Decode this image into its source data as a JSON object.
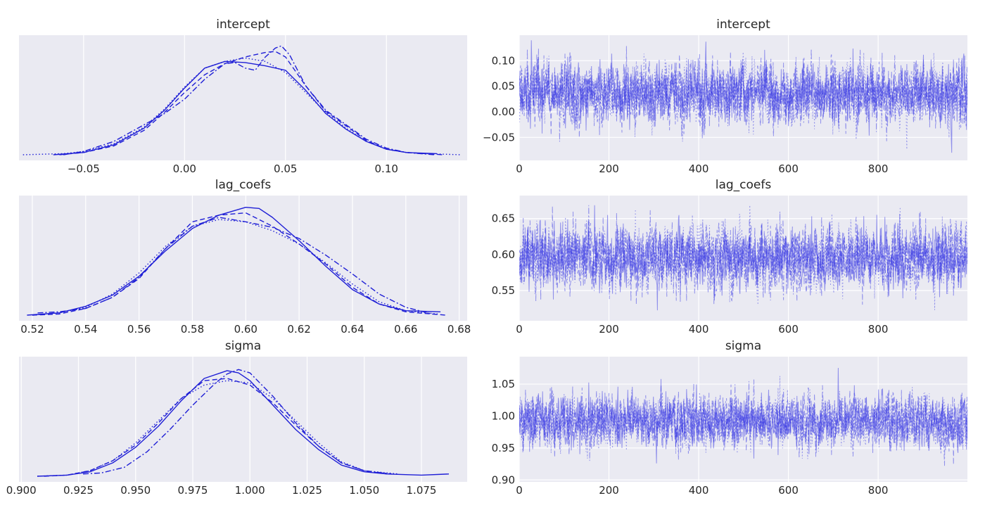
{
  "chart_data": [
    {
      "id": "kde-intercept",
      "type": "line",
      "title": "intercept",
      "xlim": [
        -0.082,
        0.14
      ],
      "ylim": [
        0,
        1
      ],
      "xticks": [
        -0.05,
        0.0,
        0.05,
        0.1
      ],
      "xtick_labels": [
        "−0.05",
        "0.00",
        "0.05",
        "0.10"
      ],
      "show_yticks": false,
      "grid": true,
      "color": "#1f1fd6",
      "series": [
        {
          "linestyle": "solid",
          "x": [
            -0.065,
            -0.05,
            -0.035,
            -0.02,
            -0.01,
            0.0,
            0.01,
            0.02,
            0.03,
            0.04,
            0.05,
            0.06,
            0.07,
            0.08,
            0.09,
            0.1,
            0.11,
            0.125
          ],
          "y": [
            0.0,
            0.02,
            0.09,
            0.24,
            0.4,
            0.6,
            0.78,
            0.84,
            0.83,
            0.8,
            0.76,
            0.58,
            0.37,
            0.23,
            0.12,
            0.05,
            0.02,
            0.01
          ]
        },
        {
          "linestyle": "dashed",
          "x": [
            -0.062,
            -0.05,
            -0.035,
            -0.02,
            -0.01,
            0.0,
            0.01,
            0.02,
            0.03,
            0.04,
            0.045,
            0.05,
            0.06,
            0.07,
            0.08,
            0.09,
            0.1,
            0.11,
            0.128
          ],
          "y": [
            0.0,
            0.02,
            0.08,
            0.22,
            0.38,
            0.56,
            0.72,
            0.82,
            0.88,
            0.92,
            0.93,
            0.88,
            0.62,
            0.39,
            0.26,
            0.13,
            0.05,
            0.02,
            0.0
          ]
        },
        {
          "linestyle": "dotted",
          "x": [
            -0.08,
            -0.06,
            -0.05,
            -0.035,
            -0.02,
            -0.01,
            0.0,
            0.01,
            0.02,
            0.03,
            0.04,
            0.05,
            0.06,
            0.07,
            0.08,
            0.09,
            0.1,
            0.11,
            0.12,
            0.137
          ],
          "y": [
            0.0,
            0.01,
            0.03,
            0.1,
            0.25,
            0.41,
            0.61,
            0.78,
            0.84,
            0.87,
            0.84,
            0.74,
            0.56,
            0.38,
            0.24,
            0.12,
            0.05,
            0.02,
            0.01,
            0.0
          ]
        },
        {
          "linestyle": "dashdot",
          "x": [
            -0.06,
            -0.05,
            -0.035,
            -0.02,
            -0.01,
            0.0,
            0.01,
            0.02,
            0.025,
            0.03,
            0.035,
            0.04,
            0.045,
            0.048,
            0.052,
            0.06,
            0.07,
            0.08,
            0.09,
            0.1,
            0.11,
            0.124
          ],
          "y": [
            0.0,
            0.03,
            0.12,
            0.27,
            0.37,
            0.5,
            0.68,
            0.82,
            0.83,
            0.78,
            0.76,
            0.88,
            0.96,
            0.98,
            0.9,
            0.62,
            0.4,
            0.27,
            0.14,
            0.06,
            0.02,
            0.0
          ]
        }
      ]
    },
    {
      "id": "trace-intercept",
      "type": "line",
      "title": "intercept",
      "xlim": [
        0,
        999
      ],
      "ylim": [
        -0.095,
        0.15
      ],
      "xticks": [
        0,
        200,
        400,
        600,
        800
      ],
      "xtick_labels": [
        "0",
        "200",
        "400",
        "600",
        "800"
      ],
      "yticks": [
        -0.05,
        0.0,
        0.05,
        0.1
      ],
      "ytick_labels": [
        "−0.05",
        "0.00",
        "0.05",
        "0.10"
      ],
      "grid": true,
      "color": "#3535e3",
      "n_draws": 1000,
      "n_chains": 4,
      "mean": 0.035,
      "sd": 0.03,
      "range": [
        -0.08,
        0.14
      ]
    },
    {
      "id": "kde-lag_coefs",
      "type": "line",
      "title": "lag_coefs",
      "xlim": [
        0.515,
        0.683
      ],
      "ylim": [
        0,
        1
      ],
      "xticks": [
        0.52,
        0.54,
        0.56,
        0.58,
        0.6,
        0.62,
        0.64,
        0.66,
        0.68
      ],
      "xtick_labels": [
        "0.52",
        "0.54",
        "0.56",
        "0.58",
        "0.60",
        "0.62",
        "0.64",
        "0.66",
        "0.68"
      ],
      "show_yticks": false,
      "grid": true,
      "color": "#1f1fd6",
      "series": [
        {
          "linestyle": "solid",
          "x": [
            0.518,
            0.53,
            0.54,
            0.55,
            0.56,
            0.57,
            0.58,
            0.59,
            0.6,
            0.605,
            0.61,
            0.62,
            0.63,
            0.64,
            0.65,
            0.66,
            0.673
          ],
          "y": [
            0.0,
            0.02,
            0.08,
            0.18,
            0.35,
            0.58,
            0.78,
            0.9,
            0.97,
            0.96,
            0.88,
            0.67,
            0.44,
            0.23,
            0.1,
            0.04,
            0.03
          ]
        },
        {
          "linestyle": "dashed",
          "x": [
            0.52,
            0.53,
            0.54,
            0.55,
            0.56,
            0.57,
            0.58,
            0.59,
            0.6,
            0.61,
            0.62,
            0.63,
            0.64,
            0.65,
            0.66,
            0.675
          ],
          "y": [
            0.0,
            0.01,
            0.06,
            0.16,
            0.33,
            0.6,
            0.84,
            0.9,
            0.92,
            0.8,
            0.64,
            0.46,
            0.25,
            0.1,
            0.03,
            0.0
          ]
        },
        {
          "linestyle": "dotted",
          "x": [
            0.52,
            0.53,
            0.54,
            0.55,
            0.56,
            0.57,
            0.58,
            0.59,
            0.6,
            0.61,
            0.62,
            0.63,
            0.64,
            0.65,
            0.66,
            0.672
          ],
          "y": [
            0.0,
            0.02,
            0.07,
            0.19,
            0.38,
            0.62,
            0.8,
            0.86,
            0.84,
            0.76,
            0.64,
            0.47,
            0.28,
            0.12,
            0.04,
            0.01
          ]
        },
        {
          "linestyle": "dashdot",
          "x": [
            0.522,
            0.53,
            0.54,
            0.55,
            0.56,
            0.57,
            0.58,
            0.59,
            0.6,
            0.61,
            0.62,
            0.63,
            0.64,
            0.65,
            0.66,
            0.67
          ],
          "y": [
            0.02,
            0.03,
            0.06,
            0.16,
            0.34,
            0.6,
            0.8,
            0.88,
            0.84,
            0.79,
            0.69,
            0.54,
            0.37,
            0.19,
            0.07,
            0.01
          ]
        }
      ]
    },
    {
      "id": "trace-lag_coefs",
      "type": "line",
      "title": "lag_coefs",
      "xlim": [
        0,
        999
      ],
      "ylim": [
        0.508,
        0.682
      ],
      "xticks": [
        0,
        200,
        400,
        600,
        800
      ],
      "xtick_labels": [
        "0",
        "200",
        "400",
        "600",
        "800"
      ],
      "yticks": [
        0.55,
        0.6,
        0.65
      ],
      "ytick_labels": [
        "0.55",
        "0.60",
        "0.65"
      ],
      "grid": true,
      "color": "#3535e3",
      "n_draws": 1000,
      "n_chains": 4,
      "mean": 0.596,
      "sd": 0.022,
      "range": [
        0.52,
        0.675
      ]
    },
    {
      "id": "kde-sigma",
      "type": "line",
      "title": "sigma",
      "xlim": [
        0.899,
        1.095
      ],
      "ylim": [
        0,
        1
      ],
      "xticks": [
        0.9,
        0.925,
        0.95,
        0.975,
        1.0,
        1.025,
        1.05,
        1.075
      ],
      "xtick_labels": [
        "0.900",
        "0.925",
        "0.950",
        "0.975",
        "1.000",
        "1.025",
        "1.050",
        "1.075"
      ],
      "show_yticks": false,
      "grid": true,
      "color": "#1f1fd6",
      "series": [
        {
          "linestyle": "solid",
          "x": [
            0.907,
            0.92,
            0.93,
            0.94,
            0.95,
            0.96,
            0.97,
            0.98,
            0.99,
            0.995,
            1.0,
            1.01,
            1.02,
            1.03,
            1.04,
            1.05,
            1.06,
            1.075,
            1.087
          ],
          "y": [
            0.0,
            0.01,
            0.04,
            0.12,
            0.26,
            0.45,
            0.68,
            0.88,
            0.95,
            0.93,
            0.86,
            0.64,
            0.42,
            0.24,
            0.1,
            0.04,
            0.02,
            0.01,
            0.02
          ]
        },
        {
          "linestyle": "dashed",
          "x": [
            0.91,
            0.92,
            0.93,
            0.94,
            0.95,
            0.96,
            0.97,
            0.98,
            0.99,
            1.0,
            1.01,
            1.02,
            1.03,
            1.04,
            1.05,
            1.06
          ],
          "y": [
            0.0,
            0.01,
            0.05,
            0.14,
            0.28,
            0.48,
            0.7,
            0.86,
            0.88,
            0.82,
            0.66,
            0.46,
            0.27,
            0.12,
            0.05,
            0.02
          ]
        },
        {
          "linestyle": "dotted",
          "x": [
            0.907,
            0.92,
            0.93,
            0.94,
            0.95,
            0.96,
            0.97,
            0.98,
            0.99,
            1.0,
            1.01,
            1.02,
            1.03,
            1.04,
            1.05,
            1.065
          ],
          "y": [
            0.0,
            0.01,
            0.05,
            0.14,
            0.3,
            0.5,
            0.7,
            0.82,
            0.86,
            0.84,
            0.7,
            0.5,
            0.3,
            0.13,
            0.05,
            0.02
          ]
        },
        {
          "linestyle": "dashdot",
          "x": [
            0.927,
            0.935,
            0.945,
            0.955,
            0.965,
            0.975,
            0.985,
            0.99,
            0.995,
            1.0,
            1.01,
            1.02,
            1.03,
            1.04,
            1.05,
            1.062
          ],
          "y": [
            0.02,
            0.03,
            0.08,
            0.22,
            0.42,
            0.64,
            0.84,
            0.92,
            0.96,
            0.93,
            0.72,
            0.48,
            0.27,
            0.12,
            0.05,
            0.02
          ]
        }
      ]
    },
    {
      "id": "trace-sigma",
      "type": "line",
      "title": "sigma",
      "xlim": [
        0,
        999
      ],
      "ylim": [
        0.897,
        1.093
      ],
      "xticks": [
        0,
        200,
        400,
        600,
        800
      ],
      "xtick_labels": [
        "0",
        "200",
        "400",
        "600",
        "800"
      ],
      "yticks": [
        0.9,
        0.95,
        1.0,
        1.05
      ],
      "ytick_labels": [
        "0.90",
        "0.95",
        "1.00",
        "1.05"
      ],
      "grid": true,
      "color": "#3535e3",
      "n_draws": 1000,
      "n_chains": 4,
      "mean": 0.992,
      "sd": 0.021,
      "range": [
        0.905,
        1.09
      ]
    }
  ]
}
